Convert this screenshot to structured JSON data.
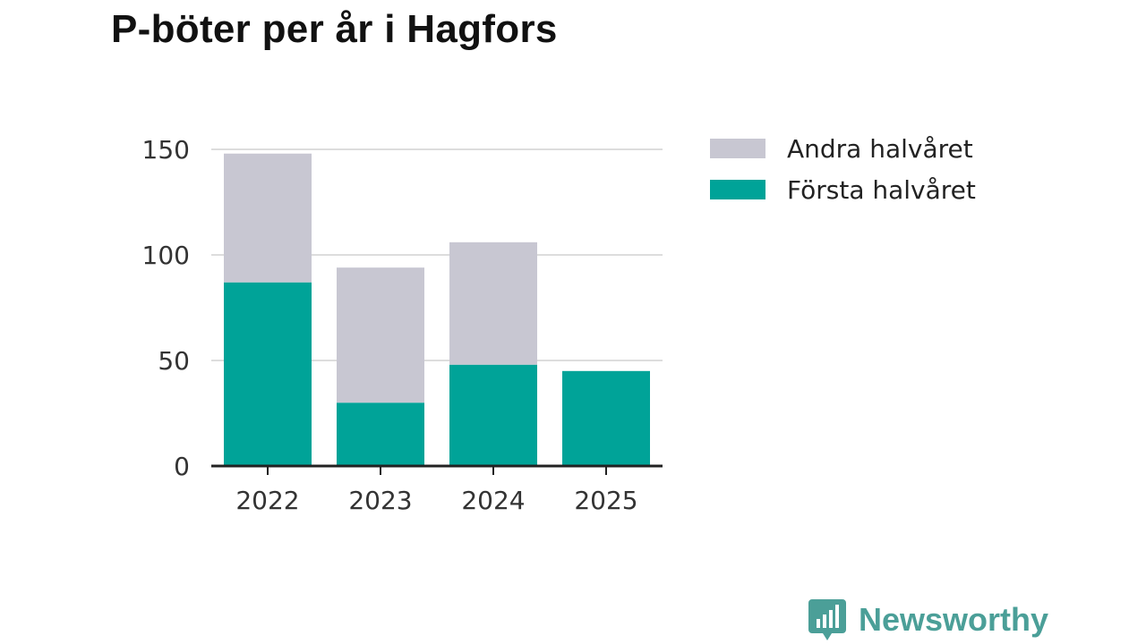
{
  "title": "P-böter per år i Hagfors",
  "colors": {
    "forsta": "#00a398",
    "andra": "#c8c7d2",
    "grid": "#dddddd",
    "axis": "#222222",
    "brand": "#4b9f98"
  },
  "chart_data": {
    "type": "bar",
    "stacked": true,
    "title": "P-böter per år i Hagfors",
    "xlabel": "",
    "ylabel": "",
    "categories": [
      "2022",
      "2023",
      "2024",
      "2025"
    ],
    "series": [
      {
        "name": "Första halvåret",
        "values": [
          87,
          30,
          48,
          45
        ]
      },
      {
        "name": "Andra halvåret",
        "values": [
          61,
          64,
          58,
          0
        ]
      }
    ],
    "ylim": [
      0,
      150
    ],
    "yticks": [
      0,
      50,
      100,
      150
    ],
    "grid": true,
    "legend": "right"
  },
  "legend": {
    "items": [
      {
        "label": "Andra halvåret",
        "series": "Andra halvåret"
      },
      {
        "label": "Första halvåret",
        "series": "Första halvåret"
      }
    ]
  },
  "brand": {
    "name": "Newsworthy",
    "icon": "newsworthy-logo-icon"
  }
}
